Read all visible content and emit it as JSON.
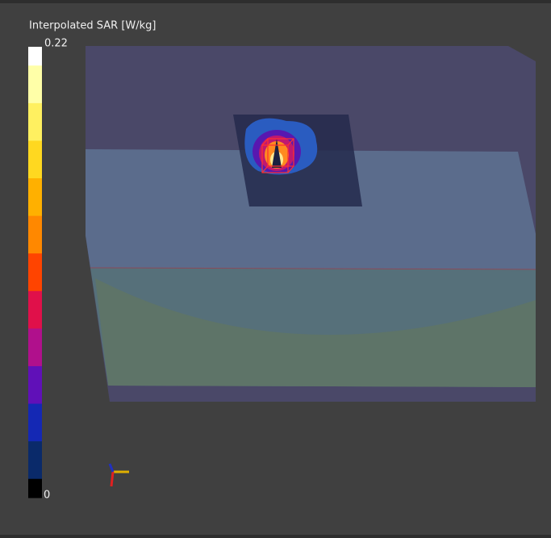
{
  "colorbar": {
    "title": "Interpolated SAR [W/kg]",
    "max": 0.22,
    "min": 0,
    "colors": [
      "#ffffff",
      "#ffffa8",
      "#fff060",
      "#ffd820",
      "#ffb000",
      "#ff8800",
      "#ff4400",
      "#e0104a",
      "#b0108c",
      "#6010b8",
      "#1428b4",
      "#0a2a6a",
      "#000000"
    ]
  }
}
